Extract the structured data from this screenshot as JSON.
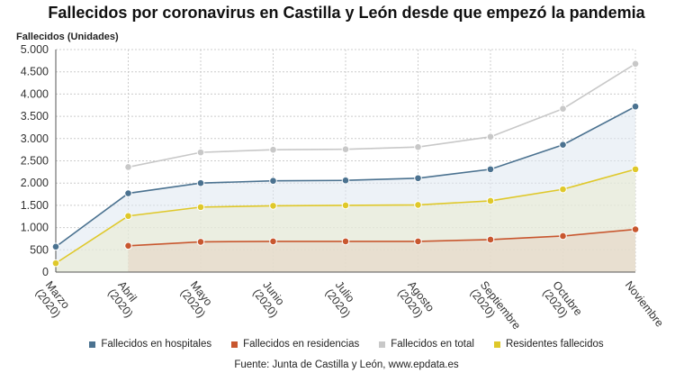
{
  "chart_data": {
    "type": "line",
    "title": "Fallecidos por coronavirus en Castilla y León desde que empezó la pandemia",
    "ylabel": "Fallecidos (Unidades)",
    "xlabel": "",
    "ylim": [
      0,
      5000
    ],
    "yticks": [
      0,
      500,
      1000,
      1500,
      2000,
      2500,
      3000,
      3500,
      4000,
      4500,
      5000
    ],
    "ytick_labels": [
      "0",
      "500",
      "1.000",
      "1.500",
      "2.000",
      "2.500",
      "3.000",
      "3.500",
      "4.000",
      "4.500",
      "5.000"
    ],
    "categories": [
      [
        "Marzo",
        "(2020)"
      ],
      [
        "Abril",
        "(2020)"
      ],
      [
        "Mayo",
        "(2020)"
      ],
      [
        "Junio",
        "(2020)"
      ],
      [
        "Julio",
        "(2020)"
      ],
      [
        "Agosto",
        "(2020)"
      ],
      [
        "Septiembre",
        "(2020)"
      ],
      [
        "Octubre",
        "(2020)"
      ],
      [
        "Noviembre"
      ]
    ],
    "series": [
      {
        "name": "Fallecidos en hospitales",
        "color": "#4b7290",
        "area": true,
        "areaColor": "#dfe8f0",
        "values": [
          570,
          1770,
          2000,
          2050,
          2060,
          2110,
          2310,
          2860,
          3720
        ]
      },
      {
        "name": "Fallecidos en residencias",
        "color": "#c8572f",
        "area": true,
        "areaColor": "#e6d3c3",
        "values": [
          null,
          590,
          680,
          690,
          690,
          690,
          730,
          810,
          960
        ]
      },
      {
        "name": "Fallecidos en total",
        "color": "#c8c8c8",
        "area": false,
        "values": [
          null,
          2360,
          2690,
          2750,
          2760,
          2810,
          3040,
          3670,
          4680
        ]
      },
      {
        "name": "Residentes fallecidos",
        "color": "#dfc82a",
        "area": true,
        "areaColor": "#e9ebcf",
        "values": [
          200,
          1260,
          1460,
          1490,
          1500,
          1510,
          1600,
          1860,
          2310
        ]
      }
    ],
    "grid": true,
    "legend": "bottom"
  },
  "source_prefix": "Fuente: Junta de Castilla y León, ",
  "source_site": "www.epdata.es"
}
